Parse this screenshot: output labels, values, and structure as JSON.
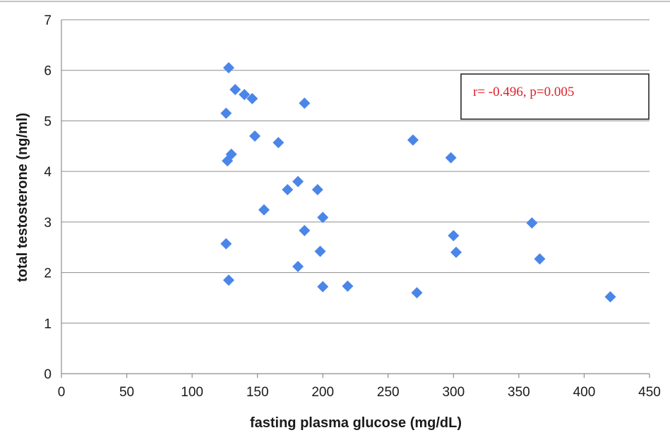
{
  "chart_data": {
    "type": "scatter",
    "title": "",
    "xlabel": "fasting plasma glucose (mg/dL)",
    "ylabel": "total testosterone (ng/ml)",
    "xlim": [
      0,
      450
    ],
    "ylim": [
      0,
      7
    ],
    "x_ticks": [
      0,
      50,
      100,
      150,
      200,
      250,
      300,
      350,
      400,
      450
    ],
    "y_ticks": [
      0,
      1,
      2,
      3,
      4,
      5,
      6,
      7
    ],
    "grid": "horizontal",
    "legend": "none",
    "marker": "diamond",
    "color": "#4a86e8",
    "annotation": "r= -0.496, p=0.005",
    "annotation_color": "#e0202a",
    "points": [
      {
        "x": 128,
        "y": 6.05
      },
      {
        "x": 133,
        "y": 5.62
      },
      {
        "x": 140,
        "y": 5.52
      },
      {
        "x": 146,
        "y": 5.44
      },
      {
        "x": 186,
        "y": 5.35
      },
      {
        "x": 126,
        "y": 5.15
      },
      {
        "x": 148,
        "y": 4.7
      },
      {
        "x": 166,
        "y": 4.57
      },
      {
        "x": 130,
        "y": 4.34
      },
      {
        "x": 127,
        "y": 4.21
      },
      {
        "x": 269,
        "y": 4.62
      },
      {
        "x": 298,
        "y": 4.27
      },
      {
        "x": 181,
        "y": 3.8
      },
      {
        "x": 173,
        "y": 3.64
      },
      {
        "x": 196,
        "y": 3.64
      },
      {
        "x": 155,
        "y": 3.24
      },
      {
        "x": 200,
        "y": 3.09
      },
      {
        "x": 186,
        "y": 2.83
      },
      {
        "x": 126,
        "y": 2.57
      },
      {
        "x": 198,
        "y": 2.42
      },
      {
        "x": 181,
        "y": 2.12
      },
      {
        "x": 128,
        "y": 1.85
      },
      {
        "x": 200,
        "y": 1.72
      },
      {
        "x": 219,
        "y": 1.73
      },
      {
        "x": 272,
        "y": 1.6
      },
      {
        "x": 300,
        "y": 2.73
      },
      {
        "x": 302,
        "y": 2.4
      },
      {
        "x": 360,
        "y": 2.98
      },
      {
        "x": 366,
        "y": 2.27
      },
      {
        "x": 420,
        "y": 1.52
      }
    ]
  }
}
